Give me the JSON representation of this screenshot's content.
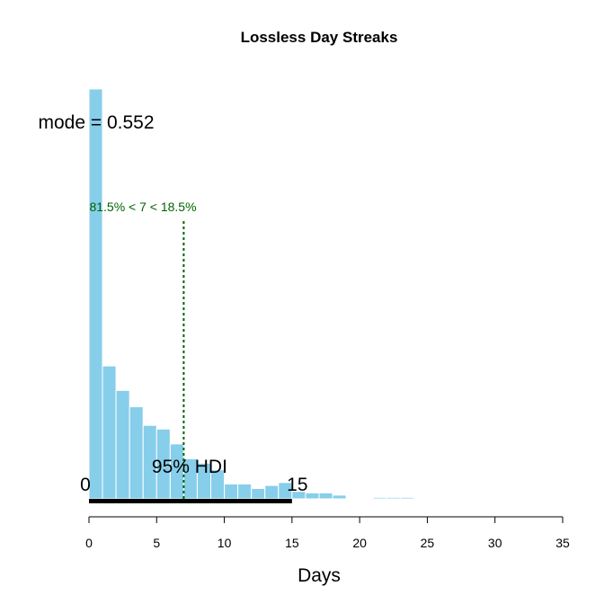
{
  "chart_data": {
    "type": "bar",
    "title": "Lossless Day Streaks",
    "xlabel": "Days",
    "ylabel": "",
    "xlim": [
      0,
      35
    ],
    "x_ticks": [
      0,
      5,
      10,
      15,
      20,
      25,
      30,
      35
    ],
    "x_tick_labels": [
      "0",
      "5",
      "10",
      "15",
      "20",
      "25",
      "30",
      "35"
    ],
    "bin_width": 1,
    "bin_starts": [
      0,
      1,
      2,
      3,
      4,
      5,
      6,
      7,
      8,
      9,
      10,
      11,
      12,
      13,
      14,
      15,
      16,
      17,
      18,
      19,
      20,
      21,
      22,
      23,
      24,
      25,
      26,
      27,
      28,
      29,
      30,
      31,
      32,
      33,
      34
    ],
    "values": [
      0.552,
      0.179,
      0.146,
      0.124,
      0.099,
      0.094,
      0.074,
      0.054,
      0.048,
      0.039,
      0.02,
      0.02,
      0.014,
      0.018,
      0.022,
      0.01,
      0.008,
      0.008,
      0.005,
      0.001,
      0.001,
      0.002,
      0.002,
      0.002,
      0.001,
      0,
      0,
      0.001,
      0,
      0,
      0,
      0,
      0,
      0,
      0
    ],
    "ylim": [
      0,
      0.6
    ],
    "bar_color": "#87CEEB",
    "mode_label": "mode = 0.552",
    "mode_value": 0.552,
    "comparison": {
      "value": 7,
      "label": "81.5% < 7 < 18.5%",
      "color": "#006400"
    },
    "hdi": {
      "label": "95% HDI",
      "low": 0,
      "high": 15,
      "low_label": "0",
      "high_label": "15"
    }
  }
}
